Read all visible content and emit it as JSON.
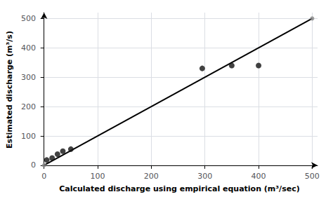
{
  "chart_data": {
    "type": "scatter",
    "xlabel": "Calculated discharge using empirical equation (m³/sec)",
    "ylabel": "Estimated discharge (m³/s)",
    "xlim": [
      -5,
      510
    ],
    "ylim": [
      -5,
      520
    ],
    "xticks": [
      0,
      100,
      200,
      300,
      400,
      500
    ],
    "yticks": [
      0,
      100,
      200,
      300,
      400,
      500
    ],
    "grid": true,
    "series": [
      {
        "type": "scatter",
        "color": "#111111",
        "x": [
          5,
          15,
          25,
          35,
          50,
          295,
          350,
          400
        ],
        "values": [
          18,
          25,
          38,
          48,
          55,
          330,
          340,
          340
        ]
      },
      {
        "type": "line",
        "color": "#000000",
        "x": [
          0,
          500
        ],
        "values": [
          0,
          500
        ]
      },
      {
        "type": "scatter",
        "color": "#888888",
        "x": [
          500
        ],
        "values": [
          500
        ]
      },
      {
        "type": "scatter",
        "color": "#888888",
        "x": [
          0
        ],
        "values": [
          0
        ]
      }
    ]
  }
}
